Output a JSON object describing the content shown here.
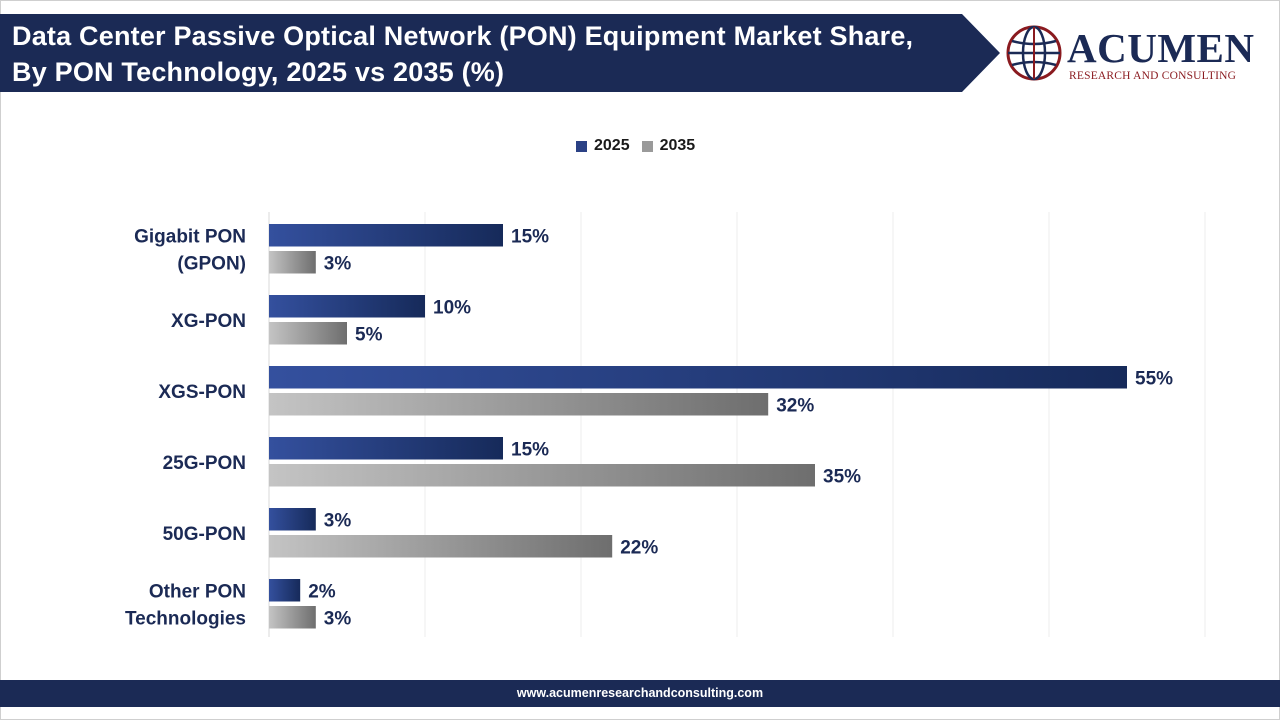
{
  "header": {
    "title": "Data Center Passive Optical Network (PON) Equipment Market Share, By PON Technology, 2025 vs 2035 (%)"
  },
  "logo": {
    "name": "ACUMEN",
    "tagline": "RESEARCH AND CONSULTING"
  },
  "footer": {
    "url": "www.acumenresearchandconsulting.com"
  },
  "colors": {
    "navy": "#1b2a55",
    "series_2025": "#2b4185",
    "series_2035": "#9a9a9a",
    "label": "#1b2a55"
  },
  "chart_data": {
    "type": "bar",
    "orientation": "horizontal",
    "categories": [
      "Gigabit PON (GPON)",
      "XG-PON",
      "XGS-PON",
      "25G-PON",
      "50G-PON",
      "Other PON Technologies"
    ],
    "category_lines": [
      [
        "Gigabit PON",
        "(GPON)"
      ],
      [
        "XG-PON"
      ],
      [
        "XGS-PON"
      ],
      [
        "25G-PON"
      ],
      [
        "50G-PON"
      ],
      [
        "Other PON",
        "Technologies"
      ]
    ],
    "series": [
      {
        "name": "2025",
        "values": [
          15,
          10,
          55,
          15,
          3,
          2
        ],
        "labels": [
          "15%",
          "10%",
          "55%",
          "15%",
          "3%",
          "2%"
        ]
      },
      {
        "name": "2035",
        "values": [
          3,
          5,
          32,
          35,
          22,
          3
        ],
        "labels": [
          "3%",
          "5%",
          "32%",
          "35%",
          "22%",
          "3%"
        ]
      }
    ],
    "title": "",
    "xlabel": "",
    "ylabel": "",
    "xlim": [
      0,
      60
    ],
    "grid": true,
    "legend_position": "top-center"
  }
}
